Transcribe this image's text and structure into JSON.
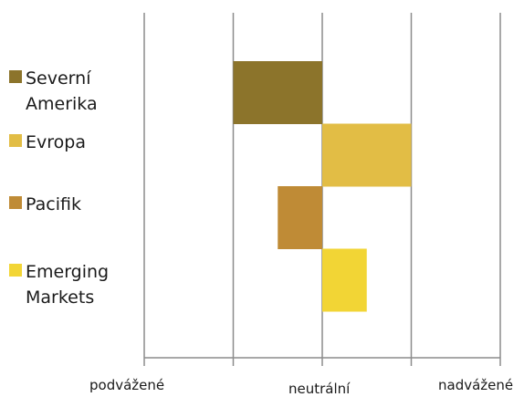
{
  "chart_data": {
    "type": "bar",
    "orientation": "horizontal",
    "floating": true,
    "categories": [
      "Severní Amerika",
      "Evropa",
      "Pacifik",
      "Emerging Markets"
    ],
    "series": [
      {
        "name": "Severní Amerika",
        "start": -1,
        "end": 0,
        "color": "#8c742b"
      },
      {
        "name": "Evropa",
        "start": 0,
        "end": 1,
        "color": "#e2bd45"
      },
      {
        "name": "Pacifik",
        "start": -0.5,
        "end": 0,
        "color": "#bf8b36"
      },
      {
        "name": "Emerging Markets",
        "start": 0,
        "end": 0.5,
        "color": "#f2d535"
      }
    ],
    "xlim": [
      -2,
      2
    ],
    "xticks": [
      -2,
      -1,
      0,
      1,
      2
    ],
    "xtick_labels": [
      {
        "value": -1.5,
        "label": "podvážené"
      },
      {
        "value": 0,
        "label": "neutrální"
      },
      {
        "value": 1.5,
        "label": "nadvážené"
      }
    ],
    "grid": "vertical",
    "legend": "left"
  }
}
